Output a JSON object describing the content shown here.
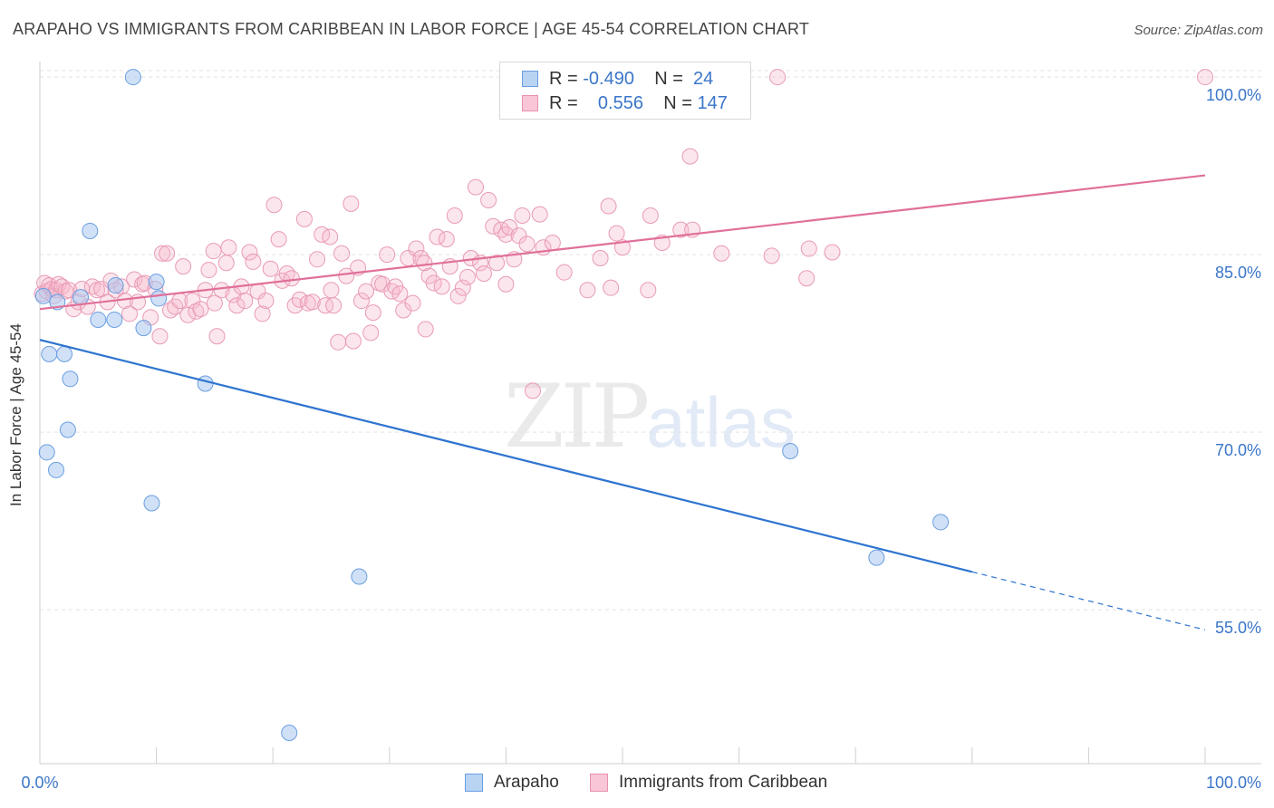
{
  "title": "ARAPAHO VS IMMIGRANTS FROM CARIBBEAN IN LABOR FORCE | AGE 45-54 CORRELATION CHART",
  "source": "Source: ZipAtlas.com",
  "watermark": {
    "zip": "ZIP",
    "atlas": "atlas"
  },
  "legend": {
    "rows": [
      {
        "r_label": "R =",
        "r_value": "-0.490",
        "n_label": "N =",
        "n_value": "24"
      },
      {
        "r_label": "R =",
        "r_value": "0.556",
        "n_label": "N =",
        "n_value": "147"
      }
    ]
  },
  "bottom_legend": {
    "series1": "Arapaho",
    "series2": "Immigrants from Caribbean"
  },
  "chart_data": {
    "type": "scatter",
    "title": "ARAPAHO VS IMMIGRANTS FROM CARIBBEAN IN LABOR FORCE | AGE 45-54 CORRELATION CHART",
    "xlabel": "",
    "ylabel": "In Labor Force | Age 45-54",
    "xlim": [
      0,
      100
    ],
    "ylim": [
      42,
      101
    ],
    "x_tick_labels": [
      "0.0%",
      "100.0%"
    ],
    "y_ticks": [
      55,
      70,
      85,
      100
    ],
    "y_tick_labels": [
      "55.0%",
      "70.0%",
      "85.0%",
      "100.0%"
    ],
    "grid": true,
    "legend_position": "top-center",
    "colors": {
      "arapaho": "#a9c8f0",
      "arapaho_line": "#2e74d0",
      "caribbean": "#f5b8cb",
      "caribbean_line": "#e0709a",
      "tick_text": "#3a76c9"
    },
    "series": [
      {
        "name": "Arapaho",
        "color": "#a9c8f0",
        "trend": {
          "x0": 0,
          "y0": 77.8,
          "x1": 80,
          "y1": 58.2,
          "dashed_to_x": 100,
          "dashed_to_y": 53.3
        },
        "points": [
          [
            8,
            100
          ],
          [
            0.3,
            81.5
          ],
          [
            1.5,
            81
          ],
          [
            4.3,
            87
          ],
          [
            6.4,
            79.5
          ],
          [
            5,
            79.5
          ],
          [
            6.5,
            82.4
          ],
          [
            10,
            82.7
          ],
          [
            10.2,
            81.3
          ],
          [
            8.9,
            78.8
          ],
          [
            0.8,
            76.6
          ],
          [
            2.1,
            76.6
          ],
          [
            2.6,
            74.5
          ],
          [
            14.2,
            74.1
          ],
          [
            2.4,
            70.2
          ],
          [
            0.6,
            68.3
          ],
          [
            1.4,
            66.8
          ],
          [
            9.6,
            64
          ],
          [
            27.4,
            57.8
          ],
          [
            21.4,
            44.6
          ],
          [
            64.4,
            68.4
          ],
          [
            71.8,
            59.4
          ],
          [
            77.3,
            62.4
          ],
          [
            3.5,
            81.4
          ]
        ]
      },
      {
        "name": "Immigrants from Caribbean",
        "color": "#f5b8cb",
        "trend": {
          "x0": 0,
          "y0": 80.4,
          "x1": 100,
          "y1": 91.7
        },
        "points": [
          [
            0.2,
            81.7
          ],
          [
            0.4,
            82.6
          ],
          [
            0.6,
            81.9
          ],
          [
            0.8,
            82.4
          ],
          [
            1.0,
            82.1
          ],
          [
            1.2,
            81.5
          ],
          [
            1.4,
            82.0
          ],
          [
            1.6,
            82.5
          ],
          [
            1.9,
            82.3
          ],
          [
            2.2,
            81.9
          ],
          [
            2.5,
            82.0
          ],
          [
            2.9,
            80.4
          ],
          [
            3.3,
            81.0
          ],
          [
            3.6,
            82.1
          ],
          [
            4.1,
            80.6
          ],
          [
            4.5,
            82.3
          ],
          [
            4.9,
            82.0
          ],
          [
            5.3,
            82.1
          ],
          [
            5.8,
            81.0
          ],
          [
            6.1,
            82.8
          ],
          [
            6.5,
            82.0
          ],
          [
            7.0,
            82.3
          ],
          [
            7.3,
            81.1
          ],
          [
            7.7,
            80.0
          ],
          [
            8.1,
            82.9
          ],
          [
            8.4,
            81.0
          ],
          [
            8.8,
            82.5
          ],
          [
            9.0,
            82.6
          ],
          [
            9.5,
            79.7
          ],
          [
            9.9,
            82.1
          ],
          [
            10.3,
            78.1
          ],
          [
            10.5,
            85.1
          ],
          [
            10.9,
            85.1
          ],
          [
            11.2,
            80.3
          ],
          [
            11.6,
            80.6
          ],
          [
            12.0,
            81.1
          ],
          [
            12.3,
            84.0
          ],
          [
            12.7,
            79.9
          ],
          [
            13.1,
            81.1
          ],
          [
            13.4,
            80.2
          ],
          [
            13.8,
            80.4
          ],
          [
            14.2,
            82.0
          ],
          [
            14.5,
            83.7
          ],
          [
            14.9,
            85.3
          ],
          [
            15.2,
            78.1
          ],
          [
            15.6,
            82.0
          ],
          [
            16.0,
            84.3
          ],
          [
            16.2,
            85.6
          ],
          [
            16.6,
            81.6
          ],
          [
            16.9,
            80.7
          ],
          [
            17.3,
            82.3
          ],
          [
            17.6,
            81.1
          ],
          [
            18.0,
            85.2
          ],
          [
            18.3,
            84.4
          ],
          [
            18.7,
            81.9
          ],
          [
            19.1,
            80.0
          ],
          [
            19.4,
            81.1
          ],
          [
            19.8,
            83.8
          ],
          [
            20.1,
            89.2
          ],
          [
            20.5,
            86.3
          ],
          [
            20.8,
            82.8
          ],
          [
            21.2,
            83.4
          ],
          [
            21.6,
            83.0
          ],
          [
            21.9,
            80.7
          ],
          [
            22.3,
            81.2
          ],
          [
            22.7,
            88.0
          ],
          [
            23.0,
            80.9
          ],
          [
            23.4,
            81.0
          ],
          [
            23.8,
            84.6
          ],
          [
            24.2,
            86.7
          ],
          [
            24.5,
            80.7
          ],
          [
            24.9,
            86.5
          ],
          [
            25.2,
            80.7
          ],
          [
            25.6,
            77.6
          ],
          [
            25.9,
            85.1
          ],
          [
            26.3,
            83.2
          ],
          [
            26.7,
            89.3
          ],
          [
            26.9,
            77.7
          ],
          [
            27.3,
            83.9
          ],
          [
            27.6,
            81.1
          ],
          [
            28.0,
            81.9
          ],
          [
            28.4,
            78.4
          ],
          [
            28.6,
            80.1
          ],
          [
            29.1,
            82.6
          ],
          [
            29.4,
            82.5
          ],
          [
            29.8,
            85.0
          ],
          [
            30.2,
            81.9
          ],
          [
            30.5,
            82.3
          ],
          [
            30.9,
            81.7
          ],
          [
            31.2,
            80.3
          ],
          [
            31.6,
            84.7
          ],
          [
            32.0,
            80.9
          ],
          [
            32.3,
            85.5
          ],
          [
            32.7,
            84.7
          ],
          [
            33.1,
            78.7
          ],
          [
            33.4,
            83.2
          ],
          [
            33.8,
            82.6
          ],
          [
            34.1,
            86.5
          ],
          [
            34.5,
            82.3
          ],
          [
            34.9,
            86.3
          ],
          [
            35.2,
            84.0
          ],
          [
            35.6,
            88.3
          ],
          [
            35.9,
            81.5
          ],
          [
            36.3,
            82.2
          ],
          [
            36.7,
            83.1
          ],
          [
            37.0,
            84.7
          ],
          [
            37.4,
            90.7
          ],
          [
            37.8,
            84.3
          ],
          [
            38.1,
            83.4
          ],
          [
            38.5,
            89.6
          ],
          [
            38.9,
            87.4
          ],
          [
            39.2,
            84.3
          ],
          [
            39.6,
            87.1
          ],
          [
            40.0,
            86.7
          ],
          [
            40.3,
            87.3
          ],
          [
            40.7,
            84.6
          ],
          [
            41.1,
            86.6
          ],
          [
            41.4,
            88.3
          ],
          [
            41.8,
            85.9
          ],
          [
            42.3,
            73.5
          ],
          [
            42.9,
            88.4
          ],
          [
            43.2,
            85.6
          ],
          [
            48.1,
            84.7
          ],
          [
            48.8,
            89.1
          ],
          [
            49.5,
            86.8
          ],
          [
            50.0,
            85.6
          ],
          [
            52.4,
            88.3
          ],
          [
            53.4,
            86.0
          ],
          [
            55.0,
            87.1
          ],
          [
            55.8,
            93.3
          ],
          [
            56.0,
            87.1
          ],
          [
            58.5,
            85.1
          ],
          [
            62.8,
            84.9
          ],
          [
            65.8,
            83.0
          ],
          [
            66.0,
            85.5
          ],
          [
            68.0,
            85.2
          ],
          [
            52.2,
            82.0
          ],
          [
            100.0,
            100.0
          ],
          [
            63.3,
            100.0
          ],
          [
            15.0,
            80.9
          ],
          [
            33.0,
            84.3
          ],
          [
            45.0,
            83.5
          ],
          [
            40.0,
            82.5
          ],
          [
            47.0,
            82.0
          ],
          [
            44.0,
            86.0
          ],
          [
            49.0,
            82.2
          ],
          [
            25.0,
            82.0
          ]
        ]
      }
    ]
  }
}
